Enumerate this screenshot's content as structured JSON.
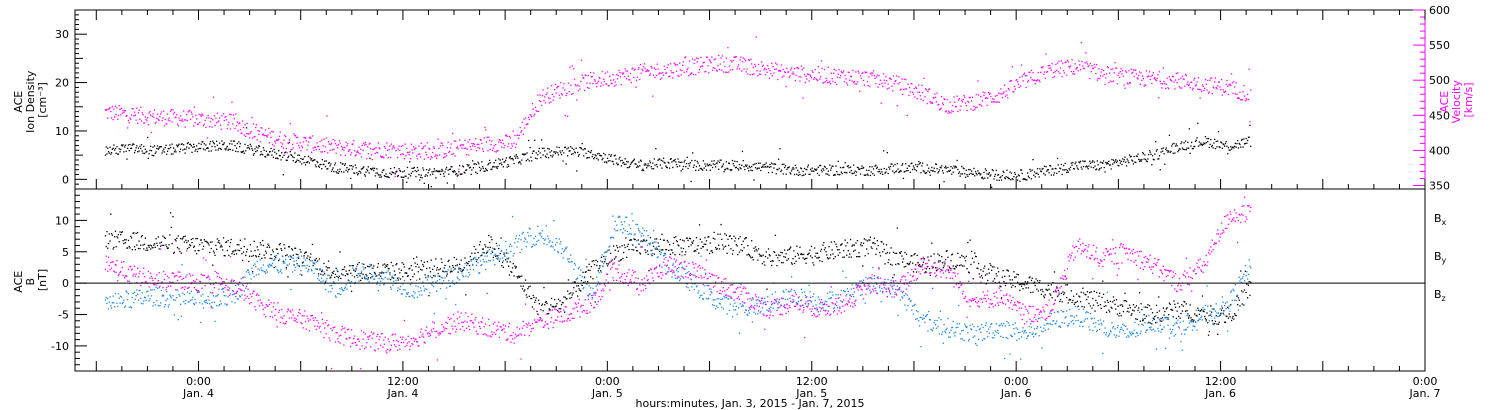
{
  "chart_data": [
    {
      "type": "scatter",
      "panel": "top",
      "ylabel_left": [
        "ACE",
        "Ion Density",
        "[cm⁻³]"
      ],
      "ylabel_right": [
        "ACE",
        "Velocity",
        "[km/s]"
      ],
      "ylim_left": [
        -2,
        35
      ],
      "ylim_right": [
        345,
        600
      ],
      "yticks_left": [
        "0",
        "10",
        "20",
        "30"
      ],
      "yticks_right": [
        "350",
        "400",
        "450",
        "500",
        "550",
        "600"
      ],
      "right_axis_color": "#ff00ff",
      "series": [
        {
          "name": "",
          "axis": "left",
          "color": "#000000",
          "points": [
            [
              -11,
              6
            ],
            [
              -8,
              6.5
            ],
            [
              -5,
              6
            ],
            [
              -2,
              6.5
            ],
            [
              1,
              7
            ],
            [
              4,
              7
            ],
            [
              7,
              6
            ],
            [
              10,
              5
            ],
            [
              13,
              4
            ],
            [
              16,
              2.5
            ],
            [
              19,
              2
            ],
            [
              22,
              1.5
            ],
            [
              25,
              1.5
            ],
            [
              28,
              1.5
            ],
            [
              31,
              2
            ],
            [
              34,
              3
            ],
            [
              37,
              4
            ],
            [
              40,
              5.5
            ],
            [
              43,
              6
            ],
            [
              46,
              5.5
            ],
            [
              49,
              4
            ],
            [
              52,
              3
            ],
            [
              55,
              3.5
            ],
            [
              58,
              3
            ],
            [
              61,
              3
            ],
            [
              64,
              3
            ],
            [
              67,
              2.5
            ],
            [
              70,
              2
            ],
            [
              73,
              2
            ],
            [
              76,
              2
            ],
            [
              79,
              2
            ],
            [
              82,
              2.5
            ],
            [
              85,
              2.5
            ],
            [
              88,
              2
            ],
            [
              91,
              1.5
            ],
            [
              94,
              1
            ],
            [
              97,
              1
            ],
            [
              100,
              2
            ],
            [
              103,
              3
            ],
            [
              106,
              3
            ],
            [
              109,
              4
            ],
            [
              112,
              5
            ],
            [
              115,
              7
            ],
            [
              118,
              8
            ],
            [
              121,
              7
            ],
            [
              123.5,
              8
            ]
          ]
        },
        {
          "name": "",
          "axis": "right",
          "color": "#ff00ff",
          "points": [
            [
              -11,
              455
            ],
            [
              -8,
              452
            ],
            [
              -5,
              448
            ],
            [
              -2,
              447
            ],
            [
              1,
              444
            ],
            [
              4,
              440
            ],
            [
              7,
              425
            ],
            [
              10,
              415
            ],
            [
              13,
              410
            ],
            [
              16,
              405
            ],
            [
              19,
              403
            ],
            [
              22,
              402
            ],
            [
              25,
              400
            ],
            [
              28,
              400
            ],
            [
              31,
              405
            ],
            [
              34,
              410
            ],
            [
              37,
              412
            ],
            [
              40,
              475
            ],
            [
              43,
              490
            ],
            [
              46,
              500
            ],
            [
              49,
              505
            ],
            [
              52,
              512
            ],
            [
              55,
              515
            ],
            [
              58,
              520
            ],
            [
              61,
              525
            ],
            [
              64,
              522
            ],
            [
              67,
              515
            ],
            [
              70,
              510
            ],
            [
              73,
              508
            ],
            [
              76,
              506
            ],
            [
              79,
              503
            ],
            [
              82,
              495
            ],
            [
              85,
              482
            ],
            [
              88,
              465
            ],
            [
              91,
              470
            ],
            [
              94,
              480
            ],
            [
              97,
              500
            ],
            [
              100,
              515
            ],
            [
              103,
              520
            ],
            [
              106,
              510
            ],
            [
              109,
              505
            ],
            [
              112,
              502
            ],
            [
              115,
              500
            ],
            [
              118,
              495
            ],
            [
              121,
              490
            ],
            [
              123.5,
              480
            ]
          ]
        }
      ]
    },
    {
      "type": "scatter",
      "panel": "bottom",
      "ylabel": [
        "ACE",
        "B",
        "[nT]"
      ],
      "ylim": [
        -14,
        15
      ],
      "yticks": [
        "-10",
        "-5",
        "0",
        "5",
        "10"
      ],
      "zero_line": true,
      "legend": [
        {
          "base": "B",
          "sub": "x",
          "color": "#000000"
        },
        {
          "base": "B",
          "sub": "y",
          "color": "#1e88e5"
        },
        {
          "base": "B",
          "sub": "z",
          "color": "#ff00ff"
        }
      ],
      "series": [
        {
          "name": "Bx",
          "color": "#000000",
          "points": [
            [
              -11,
              7
            ],
            [
              -8,
              6.8
            ],
            [
              -5,
              6.5
            ],
            [
              -2,
              6.2
            ],
            [
              1,
              6
            ],
            [
              4,
              5.8
            ],
            [
              7,
              5.5
            ],
            [
              10,
              5
            ],
            [
              13,
              3.5
            ],
            [
              16,
              2
            ],
            [
              19,
              2
            ],
            [
              22,
              2
            ],
            [
              25,
              2
            ],
            [
              28,
              2.5
            ],
            [
              31,
              3
            ],
            [
              34,
              6.5
            ],
            [
              37,
              2
            ],
            [
              40,
              -4
            ],
            [
              43,
              -3
            ],
            [
              46,
              2
            ],
            [
              49,
              5
            ],
            [
              52,
              6
            ],
            [
              55,
              6
            ],
            [
              58,
              6
            ],
            [
              61,
              6.5
            ],
            [
              64,
              6
            ],
            [
              67,
              4
            ],
            [
              70,
              4.5
            ],
            [
              73,
              5
            ],
            [
              76,
              5.5
            ],
            [
              79,
              6
            ],
            [
              82,
              4
            ],
            [
              85,
              3
            ],
            [
              88,
              4
            ],
            [
              91,
              3
            ],
            [
              94,
              1
            ],
            [
              97,
              0
            ],
            [
              100,
              -1
            ],
            [
              103,
              -2
            ],
            [
              106,
              -3
            ],
            [
              109,
              -4
            ],
            [
              112,
              -5
            ],
            [
              115,
              -4
            ],
            [
              118,
              -5
            ],
            [
              121,
              -5
            ],
            [
              123.5,
              -0.5
            ]
          ]
        },
        {
          "name": "By",
          "color": "#1e88e5",
          "points": [
            [
              -11,
              -3
            ],
            [
              -8,
              -2.5
            ],
            [
              -5,
              -2
            ],
            [
              -2,
              -2.5
            ],
            [
              1,
              -2.5
            ],
            [
              4,
              -2
            ],
            [
              7,
              3
            ],
            [
              10,
              3
            ],
            [
              13,
              3
            ],
            [
              16,
              -1
            ],
            [
              19,
              2
            ],
            [
              22,
              1
            ],
            [
              25,
              -1
            ],
            [
              28,
              0
            ],
            [
              31,
              2
            ],
            [
              34,
              4
            ],
            [
              37,
              6
            ],
            [
              40,
              8
            ],
            [
              43,
              5
            ],
            [
              46,
              -2
            ],
            [
              49,
              10
            ],
            [
              52,
              8
            ],
            [
              55,
              3
            ],
            [
              58,
              0
            ],
            [
              61,
              -3
            ],
            [
              64,
              -4
            ],
            [
              67,
              -3
            ],
            [
              70,
              -2
            ],
            [
              73,
              -3
            ],
            [
              76,
              -2
            ],
            [
              79,
              0
            ],
            [
              82,
              -1
            ],
            [
              85,
              -6
            ],
            [
              88,
              -7
            ],
            [
              91,
              -8
            ],
            [
              94,
              -7
            ],
            [
              97,
              -8
            ],
            [
              100,
              -6
            ],
            [
              103,
              -5
            ],
            [
              106,
              -7
            ],
            [
              109,
              -8
            ],
            [
              112,
              -6
            ],
            [
              115,
              -7
            ],
            [
              118,
              -5
            ],
            [
              121,
              -3
            ],
            [
              123.5,
              3
            ]
          ]
        },
        {
          "name": "Bz",
          "color": "#ff00ff",
          "points": [
            [
              -11,
              3.5
            ],
            [
              -8,
              1.5
            ],
            [
              -5,
              0.5
            ],
            [
              -2,
              0.5
            ],
            [
              1,
              0
            ],
            [
              4,
              -0.5
            ],
            [
              7,
              -3
            ],
            [
              10,
              -5
            ],
            [
              13,
              -6
            ],
            [
              16,
              -8
            ],
            [
              19,
              -9
            ],
            [
              22,
              -9.5
            ],
            [
              25,
              -9
            ],
            [
              28,
              -7
            ],
            [
              31,
              -6
            ],
            [
              34,
              -7
            ],
            [
              37,
              -8
            ],
            [
              40,
              -6
            ],
            [
              43,
              -5
            ],
            [
              46,
              -3
            ],
            [
              49,
              2
            ],
            [
              52,
              0
            ],
            [
              55,
              3
            ],
            [
              58,
              2
            ],
            [
              61,
              0
            ],
            [
              64,
              -2
            ],
            [
              67,
              -4
            ],
            [
              70,
              -3
            ],
            [
              73,
              -4
            ],
            [
              76,
              -3
            ],
            [
              79,
              0
            ],
            [
              82,
              -1
            ],
            [
              85,
              3
            ],
            [
              88,
              2
            ],
            [
              91,
              -3
            ],
            [
              94,
              -2
            ],
            [
              97,
              -5
            ],
            [
              100,
              -4
            ],
            [
              103,
              6
            ],
            [
              106,
              4
            ],
            [
              109,
              5
            ],
            [
              112,
              3
            ],
            [
              115,
              0
            ],
            [
              118,
              3
            ],
            [
              121,
              11
            ],
            [
              123.5,
              11
            ]
          ]
        }
      ]
    },
    {
      "type": "time-axis",
      "xlim_hours": [
        -14.5,
        144
      ],
      "xticks": [
        {
          "h": 0,
          "time": "0:00",
          "date": "Jan. 4"
        },
        {
          "h": 24,
          "time": "12:00",
          "date": "Jan. 4"
        },
        {
          "h": 48,
          "time": "0:00",
          "date": "Jan. 5"
        },
        {
          "h": 72,
          "time": "12:00",
          "date": "Jan. 5"
        },
        {
          "h": 96,
          "time": "0:00",
          "date": "Jan. 6"
        },
        {
          "h": 120,
          "time": "12:00",
          "date": "Jan. 6"
        },
        {
          "h": 144,
          "time": "0:00",
          "date": "Jan. 7"
        }
      ],
      "xlabel": "hours:minutes, Jan.  3, 2015 - Jan.  7, 2015"
    }
  ]
}
